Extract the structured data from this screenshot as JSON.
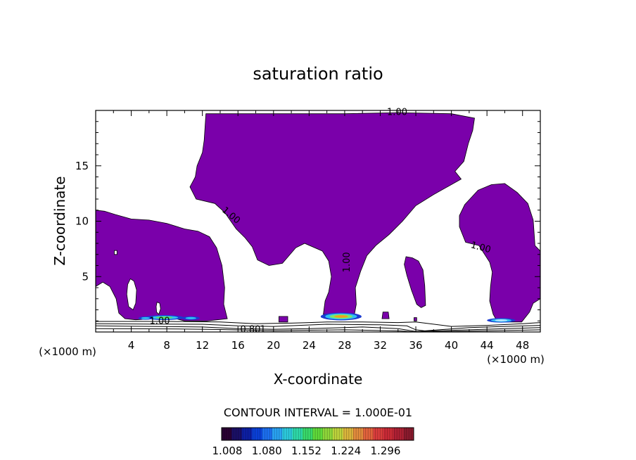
{
  "chart_data": {
    "type": "heatmap",
    "title": "saturation ratio",
    "xlabel": "X-coordinate",
    "ylabel": "Z-coordinate",
    "x_unit_left": "(×1000 m)",
    "x_unit_right": "(×1000 m)",
    "xlim": [
      0,
      50
    ],
    "ylim": [
      0,
      20
    ],
    "x_ticks": [
      4,
      8,
      12,
      16,
      20,
      24,
      28,
      32,
      36,
      40,
      44,
      48
    ],
    "y_ticks": [
      5,
      10,
      15
    ],
    "contour_interval_label": "CONTOUR INTERVAL = 1.000E-01",
    "contour_labels": [
      {
        "text": "1.00",
        "x": 33.9,
        "y": 19.8,
        "rotate": 0
      },
      {
        "text": "1.00",
        "x": 15.2,
        "y": 10.5,
        "rotate": 40
      },
      {
        "text": "1.00",
        "x": 28.3,
        "y": 6.3,
        "rotate": -90
      },
      {
        "text": "1.00",
        "x": 43.3,
        "y": 7.6,
        "rotate": 15
      },
      {
        "text": "1.00",
        "x": 7.2,
        "y": 0.95,
        "rotate": 0
      },
      {
        "text": "0.80",
        "x": 17.4,
        "y": 0.2,
        "rotate": 0
      },
      {
        "text": "1",
        "x": 18.8,
        "y": 0.2,
        "rotate": 0
      }
    ],
    "saturated_regions": [
      {
        "name": "left",
        "fill": "#7a00aa",
        "points": [
          [
            0,
            11
          ],
          [
            1,
            10.9
          ],
          [
            2.2,
            10.6
          ],
          [
            4,
            10.2
          ],
          [
            6,
            10.1
          ],
          [
            8,
            9.8
          ],
          [
            10,
            9.3
          ],
          [
            11.5,
            9.1
          ],
          [
            12.8,
            8.6
          ],
          [
            13.6,
            7.6
          ],
          [
            14.2,
            6
          ],
          [
            14.5,
            4
          ],
          [
            14.4,
            2.5
          ],
          [
            14.8,
            1.2
          ],
          [
            12.5,
            1.0
          ],
          [
            10,
            1.0
          ],
          [
            8.5,
            1.3
          ],
          [
            6.5,
            1.2
          ],
          [
            4.5,
            1.1
          ],
          [
            3.3,
            1.2
          ],
          [
            2.6,
            1.7
          ],
          [
            2.3,
            3
          ],
          [
            1.6,
            4.1
          ],
          [
            0.8,
            4.5
          ],
          [
            0,
            4.1
          ]
        ]
      },
      {
        "name": "center",
        "fill": "#7a00aa",
        "points": [
          [
            12.4,
            19.7
          ],
          [
            20,
            19.7
          ],
          [
            28,
            19.7
          ],
          [
            34,
            19.8
          ],
          [
            40,
            19.7
          ],
          [
            42.6,
            19.3
          ],
          [
            42.4,
            18.2
          ],
          [
            41.9,
            17
          ],
          [
            41.4,
            15.4
          ],
          [
            40.4,
            14.5
          ],
          [
            41.1,
            13.8
          ],
          [
            38,
            12.4
          ],
          [
            36,
            11.4
          ],
          [
            34.5,
            10
          ],
          [
            33,
            8.8
          ],
          [
            31.5,
            7.8
          ],
          [
            30.5,
            6.9
          ],
          [
            29.8,
            5.5
          ],
          [
            29.2,
            4
          ],
          [
            29.3,
            2.5
          ],
          [
            29.1,
            1.6
          ],
          [
            25.6,
            1.6
          ],
          [
            25.8,
            2.8
          ],
          [
            26.2,
            3.6
          ],
          [
            26.5,
            5
          ],
          [
            26.2,
            6.4
          ],
          [
            25.5,
            7.3
          ],
          [
            23.5,
            8
          ],
          [
            22.5,
            7.6
          ],
          [
            21,
            6.2
          ],
          [
            19.5,
            6
          ],
          [
            18.2,
            6.5
          ],
          [
            17.6,
            7.7
          ],
          [
            16.8,
            8.5
          ],
          [
            15.8,
            9.3
          ],
          [
            14.5,
            10.8
          ],
          [
            13.4,
            11.6
          ],
          [
            11.3,
            12
          ],
          [
            10.6,
            13.1
          ],
          [
            11.2,
            14
          ],
          [
            11.4,
            15
          ],
          [
            12,
            16.2
          ],
          [
            12.2,
            17.3
          ]
        ]
      },
      {
        "name": "right",
        "fill": "#7a00aa",
        "points": [
          [
            40.9,
            10.5
          ],
          [
            41.5,
            11.5
          ],
          [
            43,
            12.8
          ],
          [
            44.5,
            13.3
          ],
          [
            46,
            13.4
          ],
          [
            47.4,
            12.6
          ],
          [
            48.6,
            11.6
          ],
          [
            49.2,
            10.1
          ],
          [
            49.4,
            7.8
          ],
          [
            50,
            7.3
          ],
          [
            50,
            3
          ],
          [
            49.2,
            2.6
          ],
          [
            48.8,
            1.8
          ],
          [
            47.9,
            0.9
          ],
          [
            45.2,
            0.9
          ],
          [
            44.7,
            1.6
          ],
          [
            44.3,
            2.8
          ],
          [
            44.4,
            4.1
          ],
          [
            44.6,
            5.4
          ],
          [
            44.3,
            6.3
          ],
          [
            43.1,
            7.8
          ],
          [
            41.6,
            8.1
          ],
          [
            40.9,
            9.5
          ]
        ]
      },
      {
        "name": "left-hole",
        "fill": "#ffffff",
        "points": [
          [
            3.9,
            4.8
          ],
          [
            4.3,
            4.6
          ],
          [
            4.6,
            3.8
          ],
          [
            4.5,
            2.6
          ],
          [
            4.2,
            2
          ],
          [
            3.7,
            2.3
          ],
          [
            3.5,
            3.4
          ],
          [
            3.6,
            4.3
          ]
        ]
      },
      {
        "name": "left-hole-small",
        "fill": "#ffffff",
        "points": [
          [
            6.9,
            2.7
          ],
          [
            7.2,
            2.6
          ],
          [
            7.3,
            2.1
          ],
          [
            7.1,
            1.6
          ],
          [
            6.85,
            1.8
          ],
          [
            6.8,
            2.3
          ]
        ]
      },
      {
        "name": "left-dot",
        "fill": "#ffffff",
        "points": [
          [
            2.1,
            7.35
          ],
          [
            2.4,
            7.35
          ],
          [
            2.4,
            7.0
          ],
          [
            2.1,
            7.0
          ]
        ]
      },
      {
        "name": "mid-blob",
        "fill": "#7a00aa",
        "points": [
          [
            34.9,
            6.8
          ],
          [
            35.6,
            6.7
          ],
          [
            36.3,
            6.4
          ],
          [
            36.8,
            5.6
          ],
          [
            37,
            4.2
          ],
          [
            37.1,
            2.4
          ],
          [
            36.6,
            2.2
          ],
          [
            36.1,
            2.5
          ],
          [
            35.5,
            3.8
          ],
          [
            35,
            5.1
          ],
          [
            34.7,
            6.1
          ]
        ]
      },
      {
        "name": "small-a",
        "fill": "#7a00aa",
        "points": [
          [
            20.6,
            1.4
          ],
          [
            21.6,
            1.4
          ],
          [
            21.6,
            0.9
          ],
          [
            20.6,
            0.9
          ]
        ]
      },
      {
        "name": "small-b",
        "fill": "#7a00aa",
        "points": [
          [
            32.3,
            1.8
          ],
          [
            32.9,
            1.8
          ],
          [
            33,
            1.2
          ],
          [
            32.2,
            1.2
          ]
        ]
      },
      {
        "name": "small-c",
        "fill": "#7a00aa",
        "points": [
          [
            35.8,
            1.3
          ],
          [
            36.1,
            1.3
          ],
          [
            36.1,
            1.0
          ],
          [
            35.8,
            1.0
          ]
        ]
      }
    ],
    "hotspots": [
      {
        "cx": 7.7,
        "cy": 1.3,
        "rx": 2.2,
        "ry": 0.22,
        "colors": [
          "#1a3bd1",
          "#33c0f0",
          "#5fe060"
        ]
      },
      {
        "cx": 10.7,
        "cy": 1.25,
        "rx": 1.0,
        "ry": 0.16,
        "colors": [
          "#1a3bd1",
          "#33c0f0"
        ]
      },
      {
        "cx": 5.6,
        "cy": 1.25,
        "rx": 0.8,
        "ry": 0.15,
        "colors": [
          "#1a3bd1",
          "#33c0f0"
        ]
      },
      {
        "cx": 27.6,
        "cy": 1.4,
        "rx": 2.3,
        "ry": 0.35,
        "colors": [
          "#1a3bd1",
          "#33c0f0",
          "#7be86a",
          "#f0a020"
        ]
      },
      {
        "cx": 45.6,
        "cy": 1.05,
        "rx": 1.6,
        "ry": 0.2,
        "colors": [
          "#1a3bd1",
          "#33c0f0",
          "#bfe8ff"
        ]
      }
    ],
    "ground_contours": [
      [
        [
          0,
          0.95
        ],
        [
          4,
          0.95
        ],
        [
          8,
          0.95
        ],
        [
          14,
          0.9
        ],
        [
          18,
          0.75
        ],
        [
          22,
          0.8
        ],
        [
          24,
          0.85
        ],
        [
          26,
          0.9
        ],
        [
          30,
          0.9
        ],
        [
          34,
          0.85
        ],
        [
          36,
          0.9
        ],
        [
          40,
          0.5
        ],
        [
          44,
          0.6
        ],
        [
          48,
          0.75
        ],
        [
          50,
          0.85
        ]
      ],
      [
        [
          0,
          0.75
        ],
        [
          6,
          0.72
        ],
        [
          12,
          0.7
        ],
        [
          16,
          0.55
        ],
        [
          20,
          0.5
        ],
        [
          26,
          0.7
        ],
        [
          32,
          0.65
        ],
        [
          35,
          0.55
        ],
        [
          36,
          0.2
        ],
        [
          37,
          0.1
        ],
        [
          42,
          0.4
        ],
        [
          46,
          0.5
        ],
        [
          50,
          0.6
        ]
      ],
      [
        [
          0,
          0.55
        ],
        [
          6,
          0.5
        ],
        [
          12,
          0.45
        ],
        [
          16,
          0.3
        ],
        [
          20,
          0.25
        ],
        [
          24,
          0.3
        ],
        [
          30,
          0.45
        ],
        [
          34,
          0.3
        ],
        [
          36,
          0.05
        ],
        [
          42,
          0.2
        ],
        [
          50,
          0.4
        ]
      ],
      [
        [
          0,
          0.3
        ],
        [
          8,
          0.28
        ],
        [
          14,
          0.22
        ],
        [
          20,
          0.12
        ],
        [
          28,
          0.2
        ],
        [
          34,
          0.1
        ],
        [
          36,
          0.0
        ],
        [
          42,
          0.08
        ],
        [
          50,
          0.2
        ]
      ]
    ],
    "colorbar": {
      "tick_labels": [
        "1.008",
        "1.080",
        "1.152",
        "1.224",
        "1.296"
      ],
      "colors": [
        "#2a0033",
        "#1a0f66",
        "#0d1fa3",
        "#0a40d8",
        "#1c6ff0",
        "#29a2f2",
        "#2cc9dc",
        "#2ed8a8",
        "#39d86a",
        "#5fd83a",
        "#8ed63a",
        "#bcd23c",
        "#d9b43c",
        "#e08a3c",
        "#e0623c",
        "#d83c3c",
        "#c82a36",
        "#ad2033",
        "#8a1a2d"
      ]
    }
  }
}
